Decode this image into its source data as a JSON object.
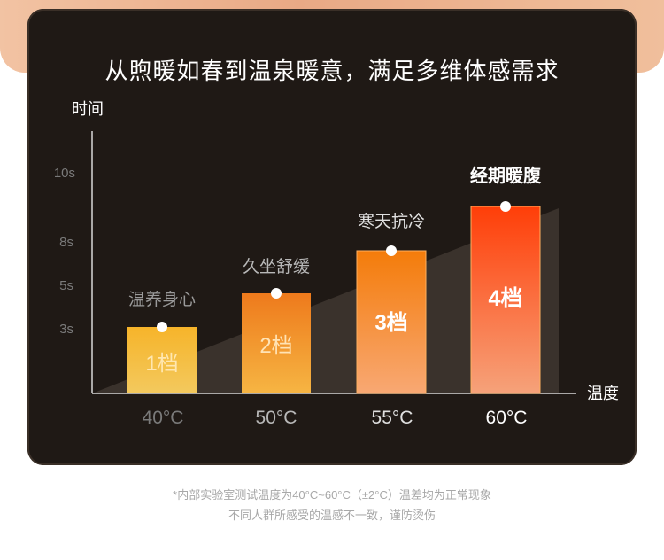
{
  "headline": "从煦暖如春到温泉暖意，满足多维体感需求",
  "footnotes": [
    "*内部实验室测试温度为40°C~60°C（±2°C）温差均为正常现象",
    "不同人群所感受的温感不一致，谨防烫伤"
  ],
  "chart_data": {
    "type": "bar",
    "ylabel": "时间",
    "xlabel": "温度",
    "y_ticks": [
      "10s",
      "8s",
      "5s",
      "3s"
    ],
    "categories": [
      "40°C",
      "50°C",
      "55°C",
      "60°C"
    ],
    "values": [
      3,
      5,
      7.5,
      9.5
    ],
    "bar_labels": [
      "1档",
      "2档",
      "3档",
      "4档"
    ],
    "annotations": [
      "温养身心",
      "久坐舒缓",
      "寒天抗冷",
      "经期暖腹"
    ],
    "colors": {
      "bar1": [
        "#f6b42a",
        "#f3c95e"
      ],
      "bar2": [
        "#ee7a1c",
        "#f6b543"
      ],
      "bar3": [
        "#f47c0a",
        "#f8a873"
      ],
      "bar4": [
        "#ff3e08",
        "#f6a27a"
      ]
    }
  }
}
